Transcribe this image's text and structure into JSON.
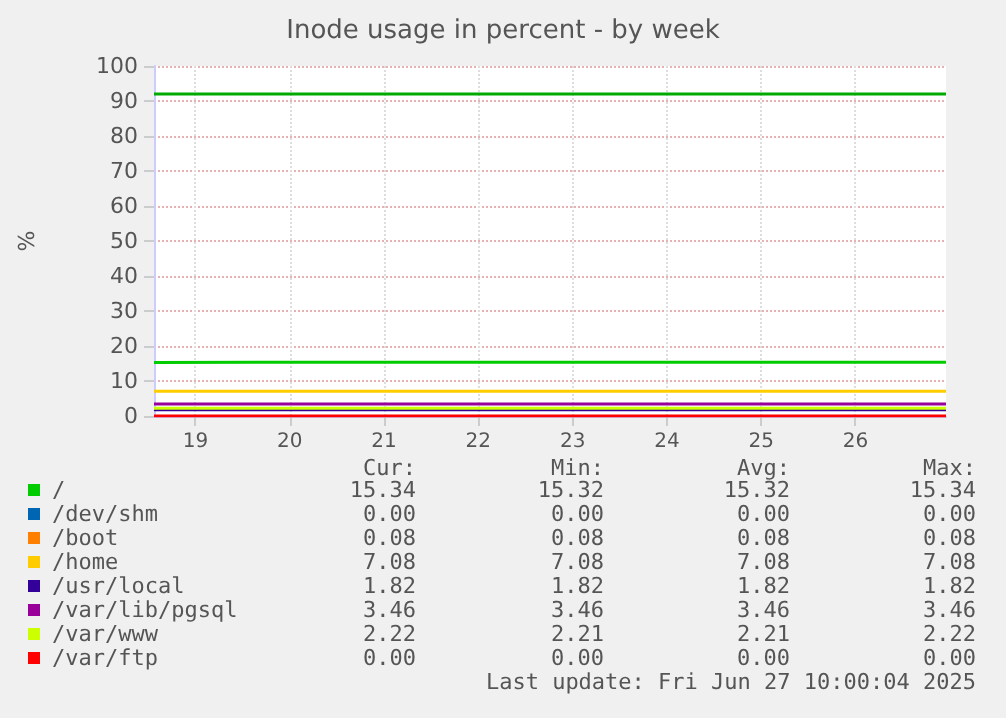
{
  "chart_data": {
    "type": "line",
    "title": "Inode usage in percent - by week",
    "ylabel": "%",
    "x": [
      18.56,
      26.96
    ],
    "xlim": [
      18.56,
      26.96
    ],
    "xticks": [
      19,
      20,
      21,
      22,
      23,
      24,
      25,
      26
    ],
    "ylim": [
      0,
      100
    ],
    "yticks": [
      0,
      10,
      20,
      30,
      40,
      50,
      60,
      70,
      80,
      90,
      100
    ],
    "grid": true,
    "legend": "bottom",
    "marker": "none",
    "line_style": "solid",
    "series": [
      {
        "name": "/",
        "color": "#00cc00",
        "values": [
          15.32,
          15.34
        ]
      },
      {
        "name": "/dev/shm",
        "color": "#0066b3",
        "values": [
          null,
          null
        ]
      },
      {
        "name": "/boot",
        "color": "#ff8000",
        "values": [
          null,
          null
        ]
      },
      {
        "name": "/home",
        "color": "#ffcc00",
        "values": [
          7.08,
          7.08
        ]
      },
      {
        "name": "/usr/local",
        "color": "#330099",
        "values": [
          1.82,
          1.82
        ]
      },
      {
        "name": "/var/lib/pgsql",
        "color": "#990099",
        "values": [
          3.46,
          3.46
        ]
      },
      {
        "name": "/var/www",
        "color": "#ccff00",
        "values": [
          2.21,
          2.22
        ]
      },
      {
        "name": "/var/ftp",
        "color": "#ff0000",
        "values": [
          0,
          0
        ]
      }
    ],
    "ref_lines": [
      {
        "axis": "y",
        "value": 92,
        "label": null,
        "color": "#00aa00"
      }
    ],
    "annotations": [
      "Cur:",
      "Min:",
      "Avg:",
      "Max:",
      "15.34",
      "15.32",
      "15.32",
      "15.34",
      "0.00",
      "0.00",
      "0.00",
      "0.00",
      "0.08",
      "0.08",
      "0.08",
      "0.08",
      "7.08",
      "7.08",
      "7.08",
      "7.08",
      "1.82",
      "1.82",
      "1.82",
      "1.82",
      "3.46",
      "3.46",
      "3.46",
      "3.46",
      "2.22",
      "2.21",
      "2.21",
      "2.22",
      "0.00",
      "0.00",
      "0.00",
      "0.00",
      "Last update: Fri Jun 27 10:00:04 2025"
    ]
  }
}
